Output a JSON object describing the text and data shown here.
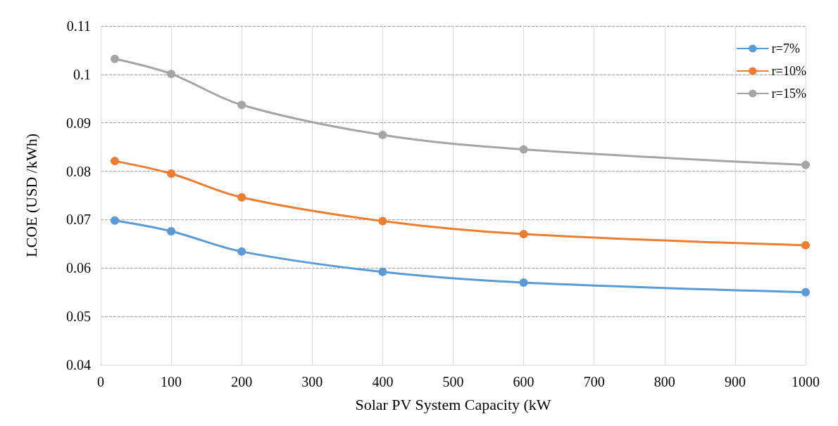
{
  "chart_data": {
    "type": "line",
    "xlabel": "Solar PV System Capacity (kW",
    "ylabel": "LCOE (USD /kWh)",
    "x": [
      20,
      100,
      200,
      400,
      600,
      1000
    ],
    "series": [
      {
        "name": "r=7%",
        "color": "#5b9bd5",
        "values": [
          0.0698,
          0.0676,
          0.0634,
          0.0592,
          0.057,
          0.055
        ]
      },
      {
        "name": "r=10%",
        "color": "#ed7d31",
        "values": [
          0.0821,
          0.0795,
          0.0746,
          0.0697,
          0.067,
          0.0647
        ]
      },
      {
        "name": "r=15%",
        "color": "#a5a5a5",
        "values": [
          0.1032,
          0.1001,
          0.0937,
          0.0875,
          0.0845,
          0.0813
        ]
      }
    ],
    "xlim": [
      0,
      1000
    ],
    "xticks": [
      0,
      100,
      200,
      300,
      400,
      500,
      600,
      700,
      800,
      900,
      1000
    ],
    "ylim": [
      0.04,
      0.11
    ],
    "yticks": [
      0.04,
      0.05,
      0.06,
      0.07,
      0.08,
      0.09,
      0.1,
      0.11
    ],
    "grid": true,
    "legend": "top right",
    "marker": "circle",
    "line_style": "solid"
  }
}
